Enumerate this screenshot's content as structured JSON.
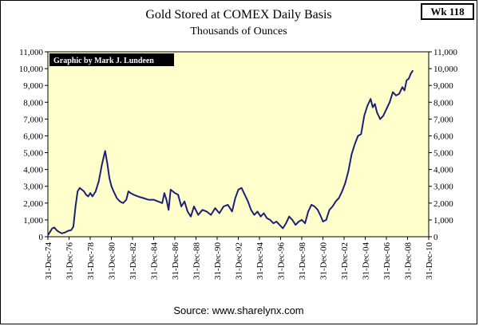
{
  "badge": "Wk 118",
  "chart_data": {
    "type": "line",
    "title": "Gold Stored at COMEX Daily Basis",
    "subtitle": "Thousands of Ounces",
    "credit": "Graphic by Mark J. Lundeen",
    "source": "Source: www.sharelynx.com",
    "xlabel": "",
    "ylabel": "",
    "xlim": [
      1974.99,
      2010.99
    ],
    "ylim": [
      0,
      11000
    ],
    "grid": false,
    "plot_background": "#ffffcc",
    "line_color": "#1f1f7a",
    "x_tick_values": [
      1974.99,
      1976.99,
      1978.99,
      1980.99,
      1982.99,
      1984.99,
      1986.99,
      1988.99,
      1990.99,
      1992.99,
      1994.99,
      1996.99,
      1998.99,
      2000.99,
      2002.99,
      2004.99,
      2006.99,
      2008.99,
      2010.99
    ],
    "x_tick_labels": [
      "31-Dec-74",
      "31-Dec-76",
      "31-Dec-78",
      "31-Dec-80",
      "31-Dec-82",
      "31-Dec-84",
      "31-Dec-86",
      "31-Dec-88",
      "31-Dec-90",
      "31-Dec-92",
      "31-Dec-94",
      "31-Dec-96",
      "31-Dec-98",
      "31-Dec-00",
      "31-Dec-02",
      "31-Dec-04",
      "31-Dec-06",
      "31-Dec-08",
      "31-Dec-10"
    ],
    "y_tick_values": [
      0,
      1000,
      2000,
      3000,
      4000,
      5000,
      6000,
      7000,
      8000,
      9000,
      10000,
      11000
    ],
    "y_tick_labels": [
      "0",
      "1,000",
      "2,000",
      "3,000",
      "4,000",
      "5,000",
      "6,000",
      "7,000",
      "8,000",
      "9,000",
      "10,000",
      "11,000"
    ],
    "series": [
      {
        "x": [
          1975.0,
          1975.2,
          1975.4,
          1975.6,
          1975.8,
          1976.0,
          1976.3,
          1976.6,
          1976.9,
          1977.2,
          1977.4,
          1977.6,
          1977.8,
          1978.0,
          1978.2,
          1978.4,
          1978.6,
          1978.8,
          1979.0,
          1979.2,
          1979.5,
          1979.8,
          1980.1,
          1980.4,
          1980.6,
          1980.8,
          1981.0,
          1981.2,
          1981.5,
          1981.8,
          1982.1,
          1982.4,
          1982.6,
          1982.8,
          1983.1,
          1983.5,
          1984.0,
          1984.5,
          1985.0,
          1985.4,
          1985.8,
          1986.0,
          1986.2,
          1986.4,
          1986.6,
          1986.8,
          1987.0,
          1987.3,
          1987.6,
          1987.9,
          1988.2,
          1988.5,
          1988.8,
          1989.2,
          1989.6,
          1990.0,
          1990.4,
          1990.8,
          1991.2,
          1991.6,
          1992.0,
          1992.4,
          1992.7,
          1993.0,
          1993.3,
          1993.6,
          1993.9,
          1994.2,
          1994.5,
          1994.8,
          1995.1,
          1995.4,
          1995.7,
          1996.0,
          1996.3,
          1996.6,
          1996.9,
          1997.2,
          1997.5,
          1997.8,
          1998.1,
          1998.4,
          1998.7,
          1999.0,
          1999.3,
          1999.6,
          1999.9,
          2000.2,
          2000.5,
          2000.8,
          2001.0,
          2001.3,
          2001.6,
          2001.9,
          2002.2,
          2002.5,
          2002.8,
          2003.1,
          2003.4,
          2003.7,
          2004.0,
          2004.3,
          2004.6,
          2004.9,
          2005.2,
          2005.5,
          2005.7,
          2005.9,
          2006.1,
          2006.4,
          2006.7,
          2007.0,
          2007.3,
          2007.6,
          2007.9,
          2008.2,
          2008.5,
          2008.7,
          2008.9,
          2009.1,
          2009.3,
          2009.5
        ],
        "y": [
          100,
          300,
          500,
          550,
          400,
          300,
          200,
          250,
          350,
          400,
          600,
          1800,
          2700,
          2900,
          2800,
          2700,
          2500,
          2400,
          2600,
          2400,
          2700,
          3300,
          4300,
          5100,
          4400,
          3500,
          3000,
          2700,
          2300,
          2100,
          2000,
          2200,
          2700,
          2600,
          2500,
          2400,
          2300,
          2200,
          2200,
          2100,
          2000,
          2600,
          2200,
          1600,
          2800,
          2700,
          2600,
          2500,
          1800,
          2100,
          1500,
          1200,
          1800,
          1300,
          1600,
          1500,
          1300,
          1700,
          1400,
          1800,
          1900,
          1500,
          2300,
          2800,
          2900,
          2500,
          2100,
          1600,
          1300,
          1500,
          1200,
          1400,
          1100,
          1000,
          800,
          900,
          700,
          500,
          800,
          1200,
          1000,
          700,
          900,
          1000,
          800,
          1500,
          1900,
          1800,
          1600,
          1200,
          900,
          1000,
          1600,
          1800,
          2100,
          2300,
          2700,
          3200,
          3900,
          4900,
          5500,
          6000,
          6100,
          7200,
          7800,
          8200,
          7700,
          7900,
          7400,
          7000,
          7200,
          7600,
          8000,
          8600,
          8400,
          8500,
          8900,
          8700,
          9300,
          9400,
          9700,
          9900
        ]
      }
    ]
  }
}
